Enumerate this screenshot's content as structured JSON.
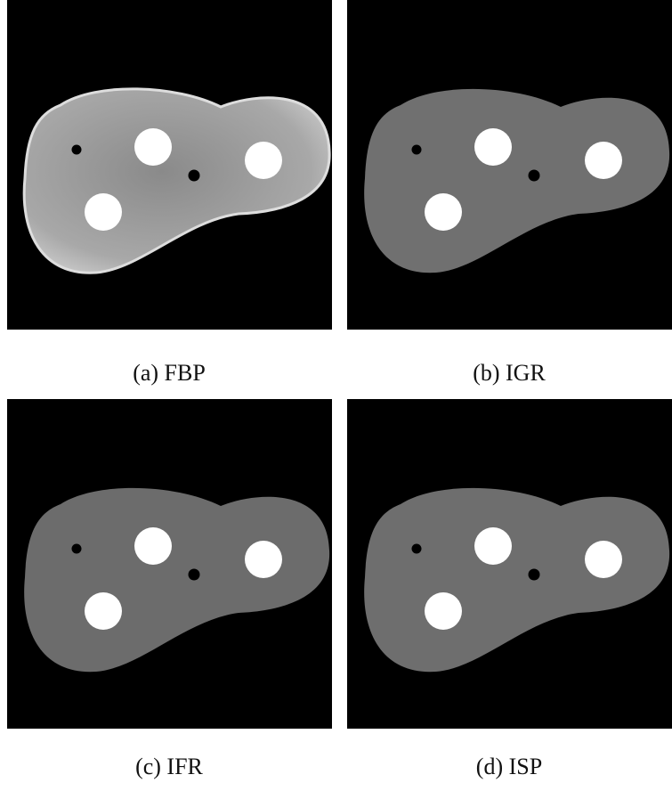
{
  "panels": [
    {
      "caption": "(a) FBP"
    },
    {
      "caption": "(b) IGR"
    },
    {
      "caption": "(c) IFR"
    },
    {
      "caption": "(d) ISP"
    }
  ]
}
